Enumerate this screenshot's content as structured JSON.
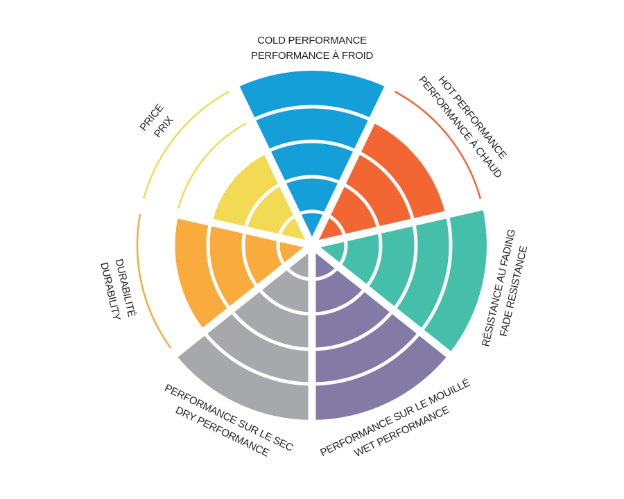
{
  "chart_data": {
    "type": "bar",
    "polar": true,
    "levels": 5,
    "rlim": [
      0,
      5
    ],
    "grid": true,
    "categories": [
      {
        "key": "cold",
        "lines": [
          "COLD PERFORMANCE",
          "PERFORMANCE À FROID"
        ],
        "value": 5,
        "color": "#159fd9"
      },
      {
        "key": "hot",
        "lines": [
          "HOT PERFORMANCE",
          "PERFORMANCE À CHAUD"
        ],
        "value": 4,
        "color": "#f26634"
      },
      {
        "key": "fade",
        "lines": [
          "RÉSISTANCE AU FADING",
          "FADE RESISTANCE"
        ],
        "value": 5,
        "color": "#46bfaa"
      },
      {
        "key": "wet",
        "lines": [
          "PERFORMANCE SUR LE MOUILLÉ",
          "WET PERFORMANCE"
        ],
        "value": 5,
        "color": "#837ba5"
      },
      {
        "key": "dry",
        "lines": [
          "PERFORMANCE SUR LE SEC",
          "DRY PERFORMANCE"
        ],
        "value": 5,
        "color": "#a7a8ab"
      },
      {
        "key": "durability",
        "lines": [
          "DURABILITÉ",
          "DURABILITY"
        ],
        "value": 4,
        "color": "#f9ab3d"
      },
      {
        "key": "price",
        "lines": [
          "PRICE",
          "PRIX"
        ],
        "value": 3,
        "color": "#f3da55"
      }
    ]
  }
}
